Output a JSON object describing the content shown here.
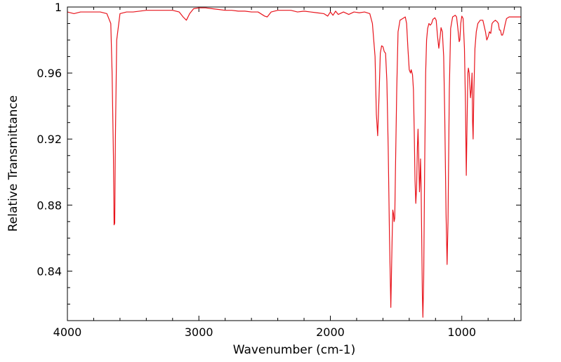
{
  "chart_data": {
    "type": "line",
    "title": "",
    "xlabel": "Wavenumber (cm-1)",
    "ylabel": "Relative Transmittance",
    "xlim": [
      4000,
      550
    ],
    "ylim": [
      0.81,
      1.0
    ],
    "x_reversed": true,
    "grid": false,
    "legend": "none",
    "x_ticks": [
      {
        "value": 4000,
        "label": "4000"
      },
      {
        "value": 3000,
        "label": "3000"
      },
      {
        "value": 2000,
        "label": "2000"
      },
      {
        "value": 1000,
        "label": "1000"
      }
    ],
    "y_ticks": [
      {
        "value": 1.0,
        "label": "1"
      },
      {
        "value": 0.96,
        "label": "0.96"
      },
      {
        "value": 0.92,
        "label": "0.92"
      },
      {
        "value": 0.88,
        "label": "0.88"
      },
      {
        "value": 0.84,
        "label": "0.84"
      }
    ],
    "series": [
      {
        "color": "#e8141c",
        "points": [
          [
            4000,
            0.997
          ],
          [
            3950,
            0.996
          ],
          [
            3900,
            0.997
          ],
          [
            3850,
            0.997
          ],
          [
            3800,
            0.997
          ],
          [
            3750,
            0.997
          ],
          [
            3700,
            0.996
          ],
          [
            3670,
            0.99
          ],
          [
            3660,
            0.96
          ],
          [
            3650,
            0.91
          ],
          [
            3645,
            0.868
          ],
          [
            3640,
            0.869
          ],
          [
            3635,
            0.92
          ],
          [
            3625,
            0.98
          ],
          [
            3600,
            0.996
          ],
          [
            3550,
            0.997
          ],
          [
            3500,
            0.997
          ],
          [
            3400,
            0.998
          ],
          [
            3300,
            0.998
          ],
          [
            3200,
            0.998
          ],
          [
            3150,
            0.997
          ],
          [
            3120,
            0.994
          ],
          [
            3095,
            0.992
          ],
          [
            3070,
            0.996
          ],
          [
            3040,
            0.999
          ],
          [
            3000,
            0.9995
          ],
          [
            2950,
            0.9995
          ],
          [
            2900,
            0.999
          ],
          [
            2850,
            0.9985
          ],
          [
            2800,
            0.998
          ],
          [
            2750,
            0.998
          ],
          [
            2700,
            0.9975
          ],
          [
            2650,
            0.9975
          ],
          [
            2600,
            0.997
          ],
          [
            2550,
            0.997
          ],
          [
            2500,
            0.9945
          ],
          [
            2480,
            0.994
          ],
          [
            2450,
            0.997
          ],
          [
            2400,
            0.998
          ],
          [
            2350,
            0.998
          ],
          [
            2300,
            0.998
          ],
          [
            2250,
            0.997
          ],
          [
            2200,
            0.9975
          ],
          [
            2150,
            0.997
          ],
          [
            2100,
            0.9965
          ],
          [
            2050,
            0.996
          ],
          [
            2020,
            0.9945
          ],
          [
            2000,
            0.997
          ],
          [
            1980,
            0.995
          ],
          [
            1960,
            0.9975
          ],
          [
            1940,
            0.9955
          ],
          [
            1900,
            0.997
          ],
          [
            1860,
            0.9955
          ],
          [
            1820,
            0.997
          ],
          [
            1780,
            0.9965
          ],
          [
            1740,
            0.997
          ],
          [
            1700,
            0.996
          ],
          [
            1680,
            0.99
          ],
          [
            1660,
            0.97
          ],
          [
            1650,
            0.935
          ],
          [
            1640,
            0.922
          ],
          [
            1630,
            0.945
          ],
          [
            1620,
            0.972
          ],
          [
            1610,
            0.9765
          ],
          [
            1600,
            0.976
          ],
          [
            1590,
            0.973
          ],
          [
            1580,
            0.972
          ],
          [
            1570,
            0.955
          ],
          [
            1560,
            0.915
          ],
          [
            1550,
            0.86
          ],
          [
            1540,
            0.818
          ],
          [
            1530,
            0.86
          ],
          [
            1525,
            0.877
          ],
          [
            1520,
            0.875
          ],
          [
            1515,
            0.87
          ],
          [
            1510,
            0.872
          ],
          [
            1505,
            0.9
          ],
          [
            1495,
            0.95
          ],
          [
            1485,
            0.985
          ],
          [
            1470,
            0.992
          ],
          [
            1450,
            0.993
          ],
          [
            1430,
            0.994
          ],
          [
            1420,
            0.99
          ],
          [
            1410,
            0.975
          ],
          [
            1400,
            0.962
          ],
          [
            1390,
            0.96
          ],
          [
            1385,
            0.962
          ],
          [
            1375,
            0.959
          ],
          [
            1368,
            0.95
          ],
          [
            1362,
            0.925
          ],
          [
            1356,
            0.895
          ],
          [
            1350,
            0.881
          ],
          [
            1344,
            0.89
          ],
          [
            1338,
            0.915
          ],
          [
            1333,
            0.926
          ],
          [
            1328,
            0.91
          ],
          [
            1322,
            0.888
          ],
          [
            1318,
            0.895
          ],
          [
            1314,
            0.908
          ],
          [
            1310,
            0.893
          ],
          [
            1305,
            0.86
          ],
          [
            1300,
            0.825
          ],
          [
            1296,
            0.812
          ],
          [
            1290,
            0.835
          ],
          [
            1283,
            0.9
          ],
          [
            1275,
            0.96
          ],
          [
            1268,
            0.98
          ],
          [
            1260,
            0.987
          ],
          [
            1250,
            0.99
          ],
          [
            1240,
            0.989
          ],
          [
            1230,
            0.99
          ],
          [
            1220,
            0.9925
          ],
          [
            1205,
            0.9935
          ],
          [
            1195,
            0.992
          ],
          [
            1185,
            0.9825
          ],
          [
            1175,
            0.975
          ],
          [
            1165,
            0.982
          ],
          [
            1158,
            0.9875
          ],
          [
            1148,
            0.985
          ],
          [
            1138,
            0.97
          ],
          [
            1130,
            0.935
          ],
          [
            1120,
            0.875
          ],
          [
            1112,
            0.844
          ],
          [
            1105,
            0.87
          ],
          [
            1095,
            0.95
          ],
          [
            1085,
            0.987
          ],
          [
            1070,
            0.994
          ],
          [
            1050,
            0.995
          ],
          [
            1040,
            0.994
          ],
          [
            1030,
            0.987
          ],
          [
            1020,
            0.979
          ],
          [
            1015,
            0.98
          ],
          [
            1008,
            0.99
          ],
          [
            1000,
            0.9945
          ],
          [
            990,
            0.993
          ],
          [
            980,
            0.975
          ],
          [
            972,
            0.94
          ],
          [
            966,
            0.898
          ],
          [
            960,
            0.93
          ],
          [
            954,
            0.96
          ],
          [
            950,
            0.963
          ],
          [
            944,
            0.96
          ],
          [
            938,
            0.951
          ],
          [
            934,
            0.945
          ],
          [
            928,
            0.95
          ],
          [
            922,
            0.96
          ],
          [
            918,
            0.93
          ],
          [
            914,
            0.92
          ],
          [
            908,
            0.95
          ],
          [
            900,
            0.975
          ],
          [
            890,
            0.985
          ],
          [
            878,
            0.99
          ],
          [
            860,
            0.992
          ],
          [
            840,
            0.992
          ],
          [
            820,
            0.985
          ],
          [
            810,
            0.98
          ],
          [
            800,
            0.982
          ],
          [
            790,
            0.985
          ],
          [
            780,
            0.984
          ],
          [
            770,
            0.99
          ],
          [
            760,
            0.991
          ],
          [
            745,
            0.992
          ],
          [
            730,
            0.991
          ],
          [
            722,
            0.99
          ],
          [
            714,
            0.986
          ],
          [
            706,
            0.986
          ],
          [
            698,
            0.983
          ],
          [
            690,
            0.983
          ],
          [
            682,
            0.985
          ],
          [
            672,
            0.989
          ],
          [
            660,
            0.993
          ],
          [
            640,
            0.994
          ],
          [
            600,
            0.994
          ],
          [
            550,
            0.994
          ]
        ]
      }
    ]
  }
}
